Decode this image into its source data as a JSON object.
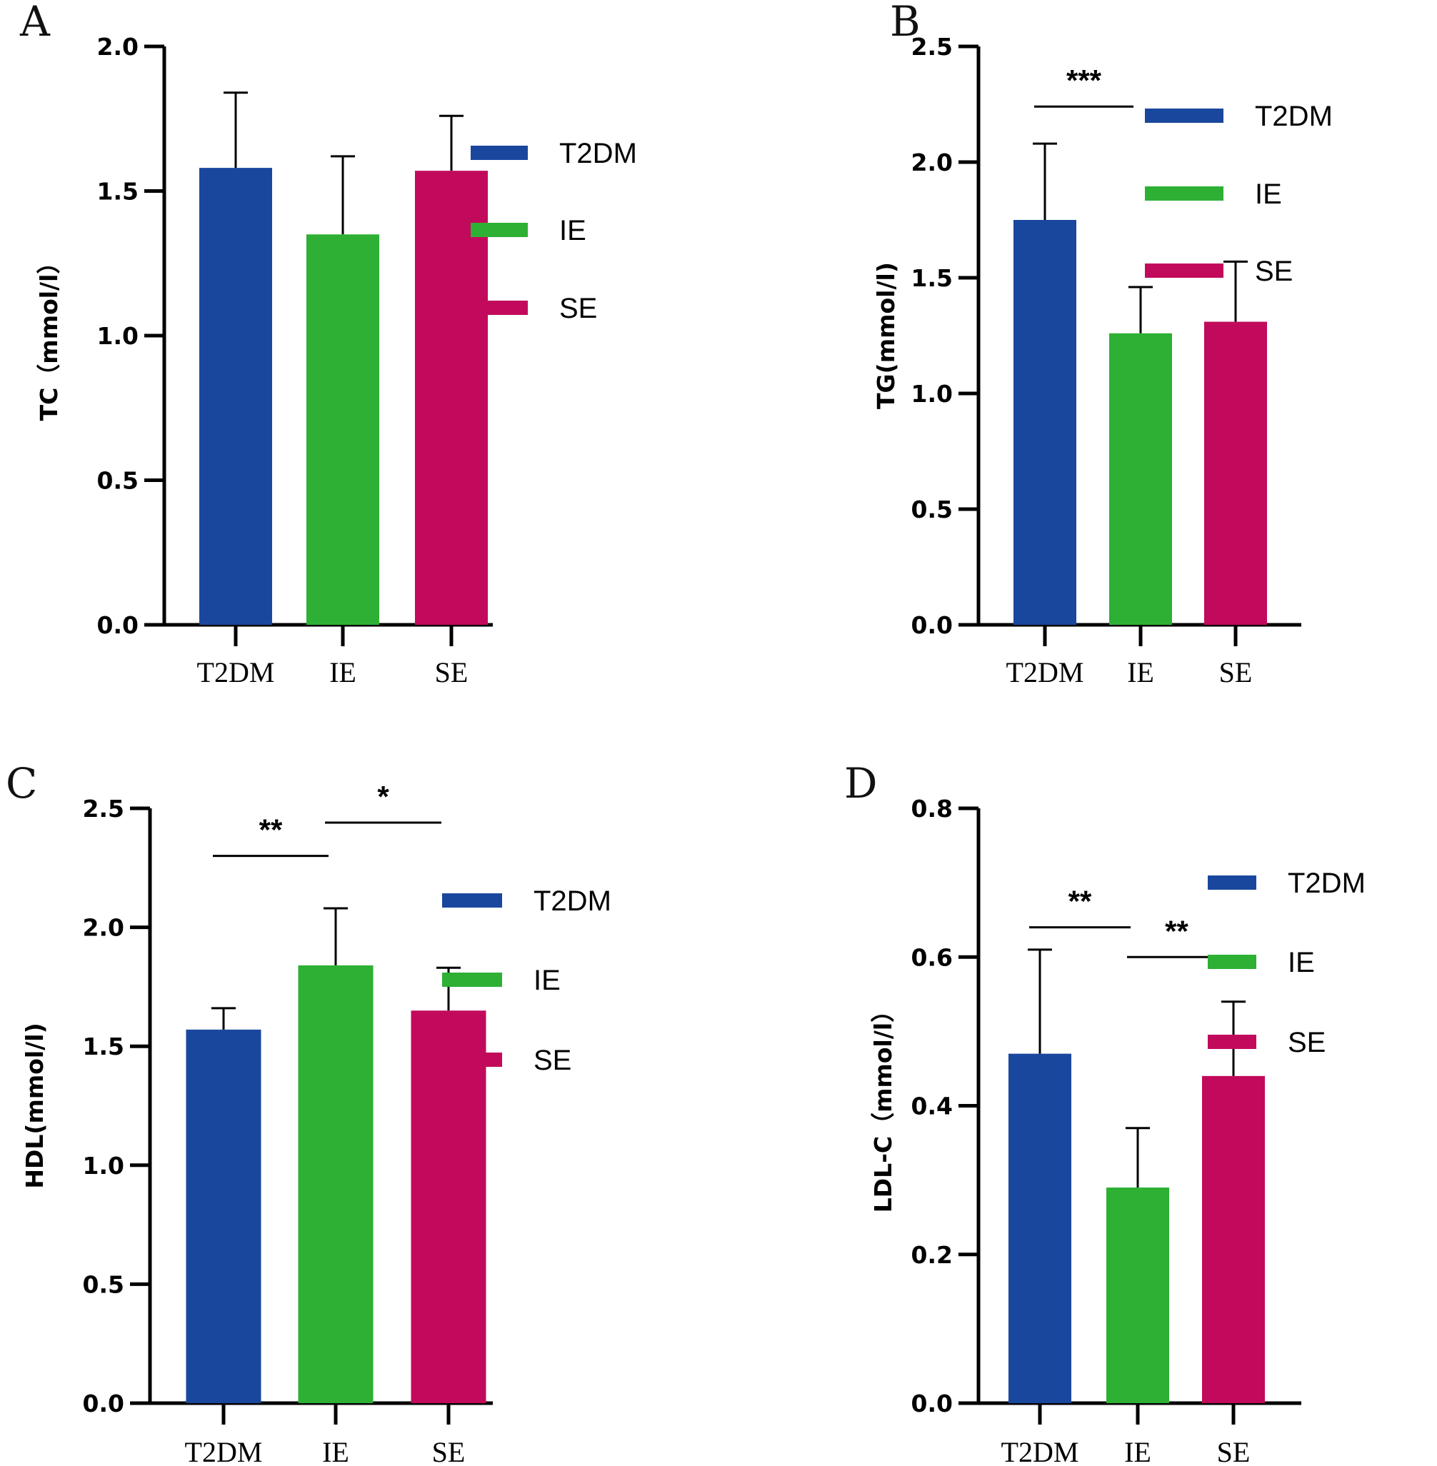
{
  "colors": {
    "T2DM": "#1a479e",
    "IE": "#2db034",
    "SE": "#c20a5c",
    "axis": "#000000"
  },
  "chart_data": [
    {
      "panel": "A",
      "type": "bar",
      "categories": [
        "T2DM",
        "IE",
        "SE"
      ],
      "values": [
        1.58,
        1.35,
        1.57
      ],
      "errors": [
        0.26,
        0.27,
        0.19
      ],
      "ylabel": "TC（mmol/l）",
      "ylim": [
        0,
        2.0
      ],
      "ticks": [
        "0.0",
        "0.5",
        "1.0",
        "1.5",
        "2.0"
      ],
      "tick_values": [
        0,
        0.5,
        1.0,
        1.5,
        2.0
      ],
      "legend": [
        "T2DM",
        "IE",
        "SE"
      ],
      "significance": []
    },
    {
      "panel": "B",
      "type": "bar",
      "categories": [
        "T2DM",
        "IE",
        "SE"
      ],
      "values": [
        1.75,
        1.26,
        1.31
      ],
      "errors": [
        0.33,
        0.2,
        0.26
      ],
      "ylabel": "TG(mmol/l)",
      "ylim": [
        0,
        2.5
      ],
      "ticks": [
        "0.0",
        "0.5",
        "1.0",
        "1.5",
        "2.0",
        "2.5"
      ],
      "tick_values": [
        0,
        0.5,
        1.0,
        1.5,
        2.0,
        2.5
      ],
      "legend": [
        "T2DM",
        "IE",
        "SE"
      ],
      "significance": [
        {
          "from": 0,
          "to": 1,
          "y": 2.24,
          "label": "***"
        }
      ]
    },
    {
      "panel": "C",
      "type": "bar",
      "categories": [
        "T2DM",
        "IE",
        "SE"
      ],
      "values": [
        1.57,
        1.84,
        1.65
      ],
      "errors": [
        0.09,
        0.24,
        0.18
      ],
      "ylabel": "HDL(mmol/l)",
      "ylim": [
        0,
        2.5
      ],
      "ticks": [
        "0.0",
        "0.5",
        "1.0",
        "1.5",
        "2.0",
        "2.5"
      ],
      "tick_values": [
        0,
        0.5,
        1.0,
        1.5,
        2.0,
        2.5
      ],
      "legend": [
        "T2DM",
        "IE",
        "SE"
      ],
      "significance": [
        {
          "from": 0,
          "to": 1,
          "y": 2.3,
          "label": "**"
        },
        {
          "from": 1,
          "to": 2,
          "y": 2.44,
          "label": "*"
        }
      ]
    },
    {
      "panel": "D",
      "type": "bar",
      "categories": [
        "T2DM",
        "IE",
        "SE"
      ],
      "values": [
        0.47,
        0.29,
        0.44
      ],
      "errors": [
        0.14,
        0.08,
        0.1
      ],
      "ylabel": "LDL-C（mmol/l）",
      "ylim": [
        0,
        0.8
      ],
      "ticks": [
        "0.0",
        "0.2",
        "0.4",
        "0.6",
        "0.8"
      ],
      "tick_values": [
        0,
        0.2,
        0.4,
        0.6,
        0.8
      ],
      "legend": [
        "T2DM",
        "IE",
        "SE"
      ],
      "significance": [
        {
          "from": 0,
          "to": 1,
          "y": 0.64,
          "label": "**"
        },
        {
          "from": 1,
          "to": 2,
          "y": 0.6,
          "label": "**"
        }
      ]
    }
  ]
}
